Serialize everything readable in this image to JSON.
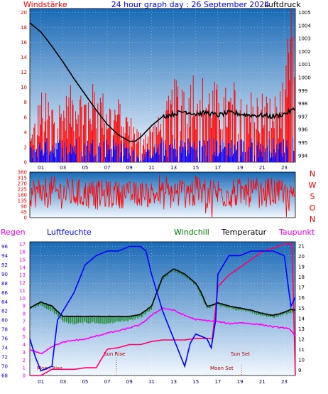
{
  "header": {
    "left_label": "Windstärke",
    "center_title": "24 hour graph day : 26 September 2024",
    "right_label": "Luftdruck"
  },
  "hour_labels": [
    "01",
    "03",
    "05",
    "07",
    "09",
    "11",
    "13",
    "15",
    "17",
    "19",
    "21",
    "23"
  ],
  "compass_letters": [
    "N",
    "W",
    "S",
    "O",
    "N"
  ],
  "middle_legend": {
    "regen": "Regen",
    "luftfeuchte": "Luftfeuchte",
    "windchill": "Windchill",
    "temperatur": "Temperatur",
    "taupunkt": "Taupunkt"
  },
  "annotations": {
    "moon_rise": "Moon Rise",
    "sun_rise": "Sun Rise",
    "moon_set": "Moon Set",
    "sun_set": "Sun Set"
  },
  "colors": {
    "bg_top": "#1a6ab6",
    "bg_bottom": "#f2f8ff",
    "wind_gust": "#ff0000",
    "wind_avg": "#0000ff",
    "pressure": "#000000",
    "direction": "#ff0000",
    "humidity": "#0000ff",
    "windchill": "#008000",
    "temperature": "#000000",
    "dewpoint": "#ff00ff",
    "rain": "#ff0066",
    "annotation": "#aa0000"
  },
  "chart_data": [
    {
      "id": "wind_pressure",
      "type": "line",
      "title": "24 hour graph day : 26 September 2024",
      "x_unit": "hour",
      "xlim": [
        0,
        24
      ],
      "left_axis": {
        "label": "Windstärke",
        "ticks": [
          0,
          2,
          4,
          6,
          8,
          10,
          12,
          14,
          16,
          18,
          20
        ],
        "ylim": [
          0,
          20.5
        ]
      },
      "right_axis": {
        "label": "Luftdruck",
        "ticks": [
          994,
          995,
          996,
          997,
          998,
          999,
          1000,
          1001,
          1002,
          1003,
          1004,
          1005
        ],
        "ylim": [
          993.5,
          1005.3
        ]
      },
      "series": [
        {
          "name": "Luftdruck",
          "axis": "right",
          "x": [
            0,
            1,
            2,
            3,
            4,
            5,
            6,
            7,
            8,
            9,
            9.5,
            10,
            11,
            12,
            13,
            14,
            15,
            16,
            17,
            18,
            19,
            20,
            21,
            22,
            23,
            24
          ],
          "y": [
            1004.2,
            1003.5,
            1002.4,
            1001.2,
            999.9,
            998.7,
            997.5,
            996.4,
            995.6,
            995.1,
            995.1,
            995.4,
            996.3,
            997.0,
            997.2,
            997.4,
            997.2,
            997.3,
            997.1,
            997.3,
            997.2,
            997.1,
            997.1,
            997.0,
            997.2,
            997.6
          ]
        },
        {
          "name": "Böen",
          "axis": "left",
          "x": [
            0,
            1,
            2,
            3,
            4,
            5,
            6,
            7,
            8,
            9,
            10,
            11,
            12,
            13,
            14,
            15,
            16,
            17,
            18,
            19,
            20,
            21,
            22,
            23,
            23.6,
            24
          ],
          "y": [
            3,
            9,
            8,
            8,
            10,
            9,
            10,
            8,
            8,
            6,
            4,
            5,
            6,
            10,
            12,
            12,
            10,
            10,
            9,
            11,
            9,
            9,
            8,
            10,
            20,
            12
          ]
        },
        {
          "name": "Mittelwind",
          "axis": "left",
          "x": [
            0,
            1,
            2,
            3,
            4,
            5,
            6,
            7,
            8,
            9,
            10,
            11,
            12,
            13,
            14,
            15,
            16,
            17,
            18,
            19,
            20,
            21,
            22,
            23,
            24
          ],
          "y": [
            2,
            3,
            3,
            3,
            3,
            3,
            3,
            3,
            3,
            2,
            1,
            2,
            3,
            3,
            3,
            3,
            3,
            3,
            3,
            3,
            3,
            3,
            3,
            3,
            4
          ]
        }
      ]
    },
    {
      "id": "wind_direction",
      "type": "line",
      "x_unit": "hour",
      "xlim": [
        0,
        24
      ],
      "y_axis": {
        "ticks": [
          0,
          45,
          90,
          135,
          180,
          225,
          270,
          315,
          360
        ],
        "ylim": [
          0,
          360
        ]
      },
      "series": [
        {
          "name": "Windrichtung",
          "x": [
            0,
            2,
            4,
            6,
            8,
            10,
            12,
            14,
            16,
            18,
            20,
            22,
            24
          ],
          "y": [
            200,
            200,
            190,
            180,
            180,
            190,
            180,
            200,
            200,
            190,
            200,
            200,
            190
          ],
          "spread": [
            120,
            130,
            120,
            120,
            110,
            100,
            120,
            130,
            130,
            120,
            120,
            120,
            60
          ]
        }
      ]
    },
    {
      "id": "temp_humidity",
      "type": "line",
      "x_unit": "hour",
      "xlim": [
        0,
        24
      ],
      "left_axis": {
        "label": "Luftfeuchte",
        "ticks": [
          68,
          70,
          72,
          74,
          76,
          78,
          80,
          82,
          84,
          86,
          88,
          90,
          92,
          94,
          96
        ],
        "ylim": [
          68,
          97
        ]
      },
      "rain_axis": {
        "label": "Regen",
        "ticks": [
          0,
          1,
          2,
          3,
          4,
          5,
          6,
          7,
          8,
          9,
          10,
          11,
          12,
          13,
          14,
          15,
          16,
          17
        ],
        "ylim": [
          0,
          17.3
        ]
      },
      "right_axis": {
        "label": "Temperatur",
        "ticks": [
          9,
          10,
          11,
          12,
          13,
          14,
          15,
          16,
          17,
          18,
          19,
          20,
          21
        ],
        "ylim": [
          8.5,
          21.4
        ]
      },
      "series": [
        {
          "name": "Luftfeuchte",
          "axis": "left",
          "x": [
            0,
            0.5,
            1,
            2,
            2.5,
            3,
            4,
            5,
            6,
            7,
            8,
            9,
            10,
            10.5,
            11,
            12,
            13,
            13.5,
            14,
            14.5,
            15,
            16,
            16.4,
            16.8,
            17,
            18,
            19,
            20,
            21,
            22,
            23,
            23.6,
            24
          ],
          "y": [
            76,
            72,
            69,
            70,
            80,
            82,
            86,
            92,
            94,
            95,
            95,
            96,
            96,
            95,
            90,
            82,
            76,
            73,
            70,
            75,
            77,
            76,
            74,
            80,
            90,
            94,
            94,
            95,
            95,
            95,
            94,
            83,
            85
          ]
        },
        {
          "name": "Temperatur",
          "axis": "right",
          "x": [
            0,
            1,
            2,
            3,
            4,
            5,
            6,
            7,
            8,
            9,
            10,
            11,
            12,
            13,
            14,
            15,
            15.5,
            16,
            16.5,
            17,
            18,
            19,
            20,
            21,
            22,
            23,
            23.6,
            24
          ],
          "y": [
            15.0,
            15.6,
            15.2,
            14.2,
            14.2,
            14.2,
            14.2,
            14.2,
            14.2,
            14.2,
            14.4,
            15.2,
            18.0,
            18.8,
            18.3,
            17.4,
            16.5,
            15.2,
            15.3,
            15.5,
            15.2,
            15.0,
            14.8,
            14.5,
            14.3,
            14.6,
            14.9,
            14.8
          ]
        },
        {
          "name": "Windchill",
          "axis": "right",
          "x": [
            0,
            1,
            2,
            3,
            4,
            5,
            6,
            7,
            8,
            9,
            10,
            11,
            12,
            13,
            14,
            15,
            16,
            17,
            18,
            19,
            20,
            21,
            22,
            23,
            24
          ],
          "y": [
            15.0,
            15.4,
            14.8,
            13.8,
            13.6,
            13.7,
            13.7,
            13.6,
            13.8,
            13.9,
            14.2,
            15.0,
            17.9,
            18.7,
            18.2,
            17.3,
            15.1,
            15.4,
            15.1,
            14.9,
            14.7,
            14.4,
            14.2,
            14.5,
            14.7
          ]
        },
        {
          "name": "Taupunkt",
          "axis": "right",
          "x": [
            0,
            0.5,
            1,
            2,
            3,
            4,
            5,
            6,
            7,
            8,
            9,
            10,
            11,
            12,
            13,
            14,
            15,
            16,
            17,
            18,
            19,
            20,
            21,
            22,
            23,
            23.6,
            24
          ],
          "y": [
            11.0,
            10.8,
            10.6,
            11.3,
            11.7,
            11.9,
            12.0,
            12.3,
            12.6,
            12.8,
            13.1,
            13.4,
            14.3,
            15.0,
            14.8,
            14.3,
            13.9,
            13.8,
            13.7,
            13.5,
            13.6,
            13.5,
            13.4,
            13.2,
            13.1,
            12.9,
            12.3
          ]
        },
        {
          "name": "Regen",
          "axis": "rain",
          "x": [
            0,
            1,
            2,
            3,
            4,
            5,
            6,
            7,
            8,
            9,
            10,
            11,
            12,
            13,
            14,
            15,
            16,
            16.5,
            17,
            18,
            19,
            20,
            21,
            22,
            23,
            23.7,
            24
          ],
          "y": [
            0,
            0,
            0.8,
            0.8,
            0.8,
            1.0,
            1.0,
            3.4,
            3.6,
            4.0,
            4.0,
            4.4,
            4.6,
            4.6,
            4.6,
            4.8,
            4.8,
            4.8,
            11.5,
            13.0,
            14.0,
            15.0,
            16.0,
            16.5,
            17.0,
            17.0,
            0
          ]
        }
      ]
    }
  ]
}
